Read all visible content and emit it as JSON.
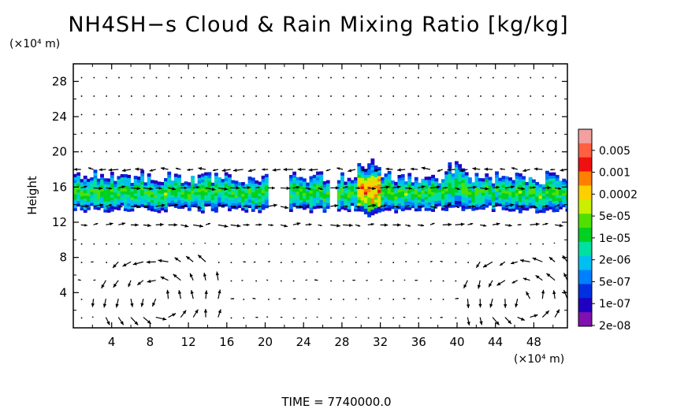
{
  "chart_data": {
    "type": "heatmap",
    "title": "NH4SH−s Cloud & Rain Mixing Ratio [kg/kg]",
    "ylabel": "Height",
    "y_unit_label": "(×10⁴ m)",
    "x_unit_label": "(×10⁴ m)",
    "xlim": [
      0,
      51.5
    ],
    "ylim": [
      0,
      30
    ],
    "x_ticks": [
      4,
      8,
      12,
      16,
      20,
      24,
      28,
      32,
      36,
      40,
      44,
      48
    ],
    "y_ticks": [
      4,
      8,
      12,
      16,
      20,
      24,
      28
    ],
    "x_tick_labels": [
      "4",
      "8",
      "12",
      "16",
      "20",
      "24",
      "28",
      "32",
      "36",
      "40",
      "44",
      "48"
    ],
    "y_tick_labels": [
      "4",
      "8",
      "12",
      "16",
      "20",
      "24",
      "28"
    ],
    "colorbar": {
      "labels": [
        "0.005",
        "0.001",
        "0.0002",
        "5e-05",
        "1e-05",
        "2e-06",
        "5e-07",
        "1e-07",
        "2e-08"
      ],
      "colors": [
        "#f2a0a0",
        "#ff6040",
        "#f01010",
        "#ff8000",
        "#ffd000",
        "#c8f000",
        "#50e000",
        "#00d020",
        "#00e0a0",
        "#00c0f0",
        "#0080ff",
        "#0030e0",
        "#2000c0",
        "#8010b0"
      ]
    },
    "cloud_layer": {
      "height_range": [
        13.5,
        17
      ],
      "segments": [
        [
          0,
          20
        ],
        [
          22.5,
          26.5
        ],
        [
          27.5,
          51.5
        ]
      ],
      "max_region": {
        "x": [
          29.5,
          32
        ],
        "y": [
          13,
          18.5
        ]
      }
    },
    "vector_field": {
      "grid_dx": 1.3,
      "grid_dy": 2.1,
      "circulations_near_surface": [
        [
          9,
          3
        ],
        [
          47,
          3
        ]
      ]
    },
    "footer": "TIME = 7740000.0"
  }
}
